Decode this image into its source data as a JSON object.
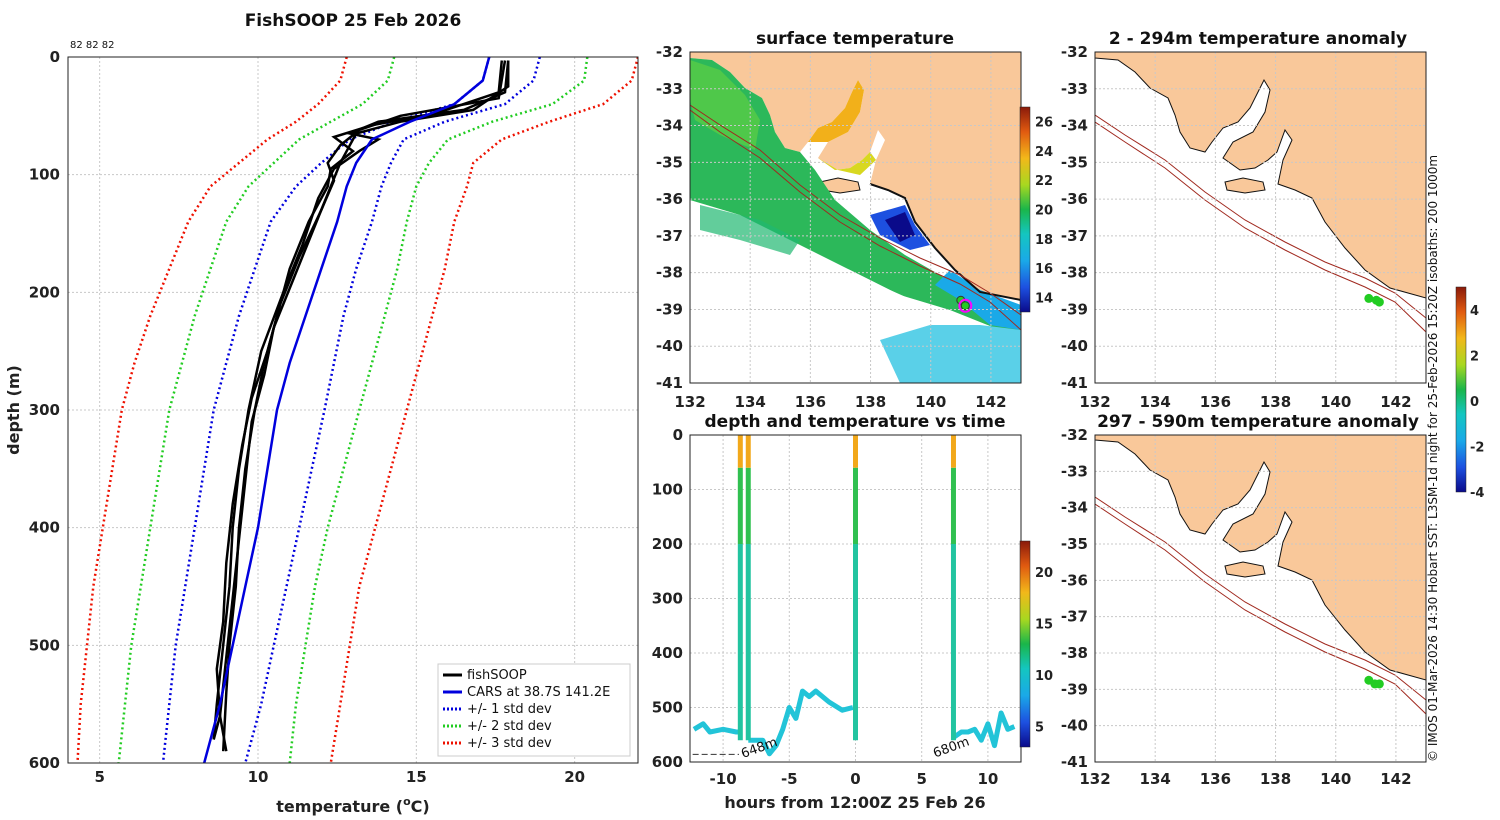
{
  "colors": {
    "land": "#f9c89a",
    "fishsoop": "#000000",
    "cars": "#0000dd",
    "std1": "#0000dd",
    "std2": "#22cc22",
    "std3": "#ee1100",
    "coast": "#111111",
    "isobath": "#a0291f",
    "marker": "#22cc22",
    "magenta": "#ff00ff"
  },
  "chart_data": [
    {
      "id": "profile",
      "type": "line",
      "title": "FishSOOP 25 Feb 2026",
      "corner_note": "82 82 82",
      "xlabel": "temperature (",
      "xlabel_sup": "o",
      "xlabel_tail": "C)",
      "ylabel": "depth (m)",
      "xlim": [
        4,
        22
      ],
      "ylim": [
        0,
        600
      ],
      "xticks": [
        5,
        10,
        15,
        20
      ],
      "yticks": [
        0,
        100,
        200,
        300,
        400,
        500,
        600
      ],
      "legend": [
        "fishSOOP",
        "CARS at 38.7S 141.2E",
        "+/- 1 std dev",
        "+/- 2 std dev",
        "+/- 3 std dev"
      ],
      "depths": [
        0,
        20,
        40,
        55,
        70,
        90,
        110,
        140,
        180,
        220,
        260,
        300,
        350,
        400,
        450,
        500,
        550,
        600
      ],
      "cars": [
        17.3,
        17.1,
        16.2,
        14.8,
        13.6,
        13.1,
        12.8,
        12.5,
        12.0,
        11.5,
        11.0,
        10.6,
        10.3,
        10.0,
        9.6,
        9.2,
        8.8,
        8.3
      ],
      "std_dev": [
        {
          "name": "+/- 1 std dev",
          "lower": [
            17.3,
            17.1,
            16.2,
            14.3,
            12.9,
            12.0,
            11.2,
            10.4,
            9.9,
            9.4,
            9.0,
            8.6,
            8.3,
            8.0,
            7.7,
            7.4,
            7.2,
            7.0
          ],
          "upper": [
            18.9,
            18.7,
            17.8,
            15.9,
            14.6,
            14.2,
            13.9,
            13.6,
            13.1,
            12.7,
            12.4,
            12.1,
            11.7,
            11.3,
            10.9,
            10.5,
            10.1,
            9.6
          ]
        },
        {
          "name": "+/- 2 std dev",
          "lower": [
            14.3,
            14.1,
            13.3,
            12.3,
            11.3,
            10.5,
            9.7,
            9.0,
            8.5,
            8.0,
            7.6,
            7.2,
            6.9,
            6.6,
            6.3,
            6.0,
            5.8,
            5.6
          ],
          "upper": [
            20.4,
            20.3,
            19.3,
            17.4,
            16.0,
            15.4,
            15.0,
            14.7,
            14.4,
            14.0,
            13.6,
            13.2,
            12.7,
            12.2,
            11.8,
            11.5,
            11.2,
            11.0
          ],
          "note": ""
        },
        {
          "name": "+/- 3 std dev",
          "lower": [
            12.8,
            12.6,
            11.9,
            11.2,
            10.3,
            9.4,
            8.5,
            7.8,
            7.2,
            6.6,
            6.1,
            5.7,
            5.4,
            5.1,
            4.8,
            4.6,
            4.4,
            4.3
          ],
          "upper": [
            22.0,
            21.8,
            20.9,
            19.2,
            17.7,
            16.8,
            16.6,
            16.2,
            15.9,
            15.5,
            15.1,
            14.7,
            14.2,
            13.7,
            13.2,
            12.9,
            12.6,
            12.3
          ]
        }
      ],
      "fishsoop_casts": [
        {
          "d": [
            3,
            30,
            45,
            55,
            65,
            70,
            80,
            95,
            120,
            160,
            200,
            250,
            300,
            350,
            400,
            450,
            500,
            550,
            580
          ],
          "t": [
            17.9,
            17.8,
            16.5,
            13.8,
            12.9,
            13.8,
            13.2,
            12.4,
            11.9,
            11.4,
            10.8,
            10.1,
            9.7,
            9.4,
            9.2,
            9.1,
            8.9,
            8.7,
            8.6
          ]
        },
        {
          "d": [
            3,
            30,
            48,
            58,
            68,
            80,
            95,
            110,
            140,
            180,
            220,
            260,
            300,
            350,
            400,
            450,
            500,
            540,
            590
          ],
          "t": [
            17.7,
            17.6,
            15.6,
            13.6,
            12.4,
            13.0,
            12.3,
            12.2,
            11.6,
            11.0,
            10.6,
            10.2,
            9.9,
            9.6,
            9.4,
            9.3,
            9.1,
            9.0,
            8.9
          ]
        },
        {
          "d": [
            3,
            35,
            50,
            62,
            75,
            90,
            105,
            130,
            170,
            210,
            250,
            290,
            330,
            380,
            430,
            480,
            520,
            560,
            590
          ],
          "t": [
            17.8,
            17.6,
            14.5,
            13.2,
            12.6,
            12.2,
            12.4,
            12.0,
            11.3,
            10.7,
            10.3,
            9.8,
            9.5,
            9.2,
            9.0,
            8.9,
            8.7,
            8.8,
            9.0
          ]
        },
        {
          "d": [
            3,
            25,
            45,
            55,
            65,
            75,
            90,
            110,
            150,
            190,
            230,
            270,
            310,
            360,
            410,
            460,
            510,
            560,
            580
          ],
          "t": [
            17.9,
            17.9,
            16.8,
            14.5,
            13.1,
            12.9,
            12.6,
            12.3,
            11.7,
            11.1,
            10.5,
            10.2,
            9.8,
            9.6,
            9.4,
            9.2,
            9.0,
            8.8,
            8.6
          ]
        }
      ]
    },
    {
      "id": "sst",
      "type": "heatmap",
      "title": "surface temperature",
      "xlim": [
        132,
        143
      ],
      "ylim": [
        -41,
        -32
      ],
      "xticks": [
        132,
        134,
        136,
        138,
        140,
        142
      ],
      "yticks": [
        -32,
        -33,
        -34,
        -35,
        -36,
        -37,
        -38,
        -39,
        -40,
        -41
      ],
      "colorbar": {
        "range": [
          13,
          27
        ],
        "ticks": [
          14,
          16,
          18,
          20,
          22,
          24,
          26
        ]
      },
      "markers": [
        {
          "lon": 141.0,
          "lat": -38.75
        },
        {
          "lon": 141.15,
          "lat": -38.9
        }
      ]
    },
    {
      "id": "depth_time",
      "type": "scatter",
      "title": "depth and temperature vs time",
      "xlabel": "hours from 12:00Z 25 Feb 26",
      "xlim": [
        -12.5,
        12.5
      ],
      "ylim": [
        0,
        600
      ],
      "xticks": [
        -10,
        -5,
        0,
        5,
        10
      ],
      "yticks": [
        0,
        100,
        200,
        300,
        400,
        500,
        600
      ],
      "colorbar": {
        "range": [
          3,
          23
        ],
        "ticks": [
          5,
          10,
          15,
          20
        ]
      },
      "annotations": [
        {
          "text": "648m",
          "x": -8.6,
          "y": 586
        },
        {
          "text": "680m",
          "x": 5.9,
          "y": 585
        }
      ],
      "bottom_depth_line": {
        "x": [
          -12.3,
          -8.8
        ],
        "y": 586
      }
    },
    {
      "id": "anom_upper",
      "type": "scatter",
      "title": "2 - 294m temperature anomaly",
      "xlim": [
        132,
        143
      ],
      "ylim": [
        -41,
        -32
      ],
      "xticks": [
        132,
        134,
        136,
        138,
        140,
        142
      ],
      "yticks": [
        -32,
        -33,
        -34,
        -35,
        -36,
        -37,
        -38,
        -39,
        -40,
        -41
      ],
      "points": [
        {
          "lon": 141.1,
          "lat": -38.7
        },
        {
          "lon": 141.35,
          "lat": -38.75
        },
        {
          "lon": 141.45,
          "lat": -38.8
        }
      ]
    },
    {
      "id": "anom_lower",
      "type": "scatter",
      "title": "297 - 590m temperature anomaly",
      "xlim": [
        132,
        143
      ],
      "ylim": [
        -41,
        -32
      ],
      "xticks": [
        132,
        134,
        136,
        138,
        140,
        142
      ],
      "yticks": [
        -32,
        -33,
        -34,
        -35,
        -36,
        -37,
        -38,
        -39,
        -40,
        -41
      ],
      "points": [
        {
          "lon": 141.1,
          "lat": -38.75
        },
        {
          "lon": 141.3,
          "lat": -38.85
        },
        {
          "lon": 141.45,
          "lat": -38.85
        }
      ],
      "colorbar": {
        "range": [
          -4,
          5
        ],
        "ticks": [
          -4,
          -2,
          0,
          2,
          4
        ]
      }
    }
  ],
  "side_note": "© IMOS 01-Mar-2026 14:30 Hobart SST: L3SM-1d night for 25-Feb-2026 15:20Z isobaths: 200  1000m"
}
